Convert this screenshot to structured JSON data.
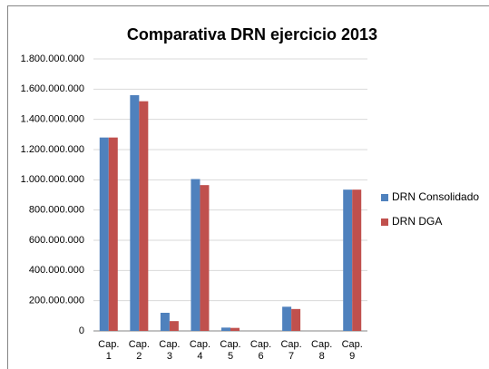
{
  "chart_data": {
    "type": "bar",
    "title": "Comparativa DRN ejercicio 2013",
    "categories": [
      "Cap. 1",
      "Cap. 2",
      "Cap. 3",
      "Cap. 4",
      "Cap. 5",
      "Cap. 6",
      "Cap. 7",
      "Cap. 8",
      "Cap. 9"
    ],
    "series": [
      {
        "name": "DRN Consolidado",
        "color": "#4f81bd",
        "values": [
          1280000000,
          1560000000,
          120000000,
          1005000000,
          22000000,
          0,
          160000000,
          0,
          935000000
        ]
      },
      {
        "name": "DRN DGA",
        "color": "#c0504d",
        "values": [
          1280000000,
          1520000000,
          65000000,
          965000000,
          20000000,
          0,
          145000000,
          0,
          935000000
        ]
      }
    ],
    "ylim": [
      0,
      1800000000
    ],
    "yticks": [
      0,
      {
        "value": 200000000,
        "label": "200.000.000"
      },
      {
        "value": 400000000,
        "label": "400.000.000"
      },
      {
        "value": 600000000,
        "label": "600.000.000"
      },
      {
        "value": 800000000,
        "label": "800.000.000"
      },
      {
        "value": 1000000000,
        "label": "1.000.000.000"
      },
      {
        "value": 1200000000,
        "label": "1.200.000.000"
      },
      {
        "value": 1400000000,
        "label": "1.400.000.000"
      },
      {
        "value": 1600000000,
        "label": "1.600.000.000"
      },
      {
        "value": 1800000000,
        "label": "1.800.000.000"
      }
    ],
    "grid": true,
    "legend": "right"
  }
}
